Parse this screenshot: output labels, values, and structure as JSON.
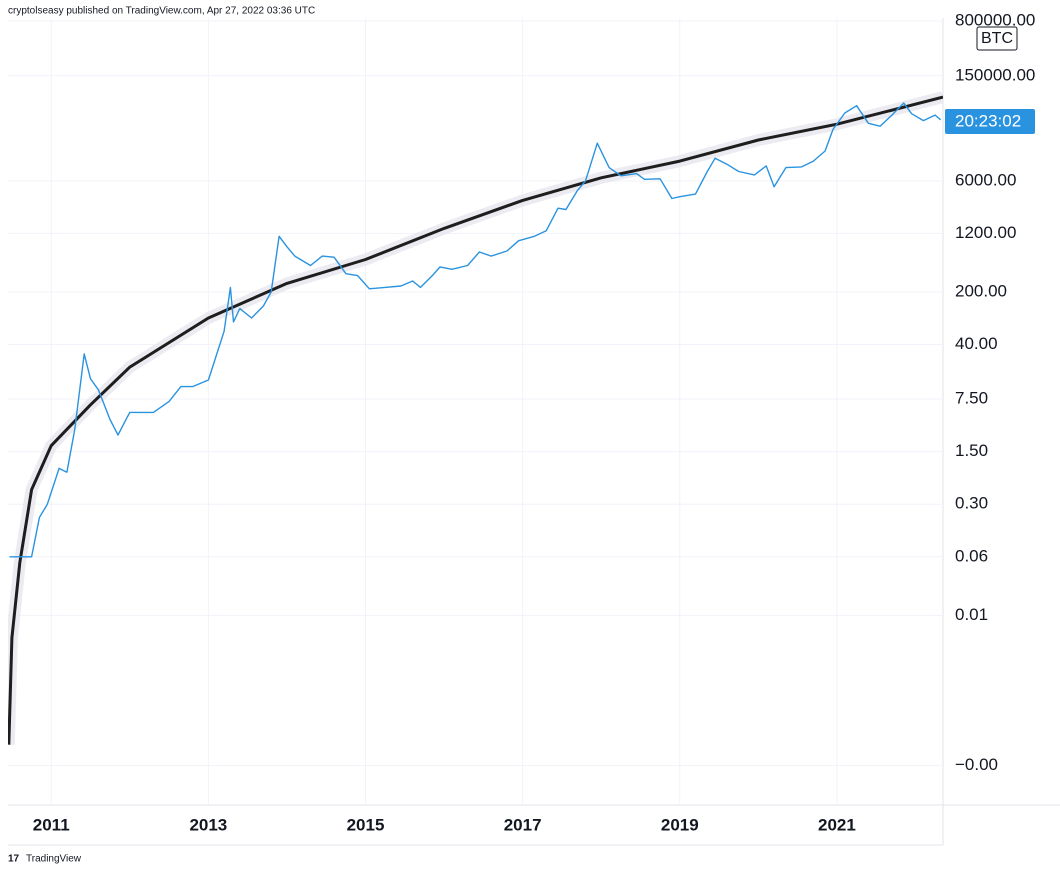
{
  "chart_data": {
    "type": "line",
    "header": "cryptolseasy published on TradingView.com, Apr 27, 2022 03:36 UTC",
    "symbol": "BTC",
    "countdown": "20:23:02",
    "footer": "TradingView",
    "log_scale": true,
    "grid": true,
    "xlim": [
      2010.45,
      2022.35
    ],
    "xticks": [
      2011,
      2013,
      2015,
      2017,
      2019,
      2021
    ],
    "ylim": [
      3e-05,
      880000
    ],
    "yticks": [
      {
        "value": 800000,
        "label": "800000.00"
      },
      {
        "value": 150000,
        "label": "150000.00"
      },
      {
        "value": 6000,
        "label": "6000.00"
      },
      {
        "value": 1200,
        "label": "1200.00"
      },
      {
        "value": 200,
        "label": "200.00"
      },
      {
        "value": 40,
        "label": "40.00"
      },
      {
        "value": 7.5,
        "label": "7.50"
      },
      {
        "value": 1.5,
        "label": "1.50"
      },
      {
        "value": 0.3,
        "label": "0.30"
      },
      0.06,
      0.01,
      {
        "value": 0.0001,
        "label": "−0.00"
      }
    ],
    "series": [
      {
        "color": "#2a93e0",
        "x": [
          2010.47,
          2010.55,
          2010.75,
          2010.85,
          2010.95,
          2011.1,
          2011.2,
          2011.3,
          2011.42,
          2011.5,
          2011.6,
          2011.75,
          2011.85,
          2011.95,
          2012.0,
          2012.1,
          2012.3,
          2012.5,
          2012.65,
          2012.8,
          2013.0,
          2013.2,
          2013.28,
          2013.32,
          2013.4,
          2013.55,
          2013.7,
          2013.8,
          2013.9,
          2014.0,
          2014.1,
          2014.3,
          2014.45,
          2014.6,
          2014.75,
          2014.9,
          2015.05,
          2015.25,
          2015.45,
          2015.6,
          2015.7,
          2015.85,
          2015.95,
          2016.1,
          2016.3,
          2016.45,
          2016.6,
          2016.8,
          2016.95,
          2017.15,
          2017.3,
          2017.45,
          2017.55,
          2017.7,
          2017.8,
          2017.95,
          2018.1,
          2018.25,
          2018.45,
          2018.55,
          2018.75,
          2018.9,
          2019.0,
          2019.2,
          2019.35,
          2019.45,
          2019.6,
          2019.75,
          2019.95,
          2020.1,
          2020.2,
          2020.35,
          2020.55,
          2020.7,
          2020.85,
          2020.95,
          2021.1,
          2021.25,
          2021.4,
          2021.55,
          2021.7,
          2021.85,
          2021.95,
          2022.1,
          2022.25,
          2022.32
        ],
        "values": [
          0.06,
          0.06,
          0.06,
          0.2,
          0.3,
          0.9,
          0.8,
          3,
          30,
          14,
          10,
          4,
          2.5,
          4,
          5,
          5,
          5,
          7,
          11,
          11,
          13.5,
          60,
          230,
          80,
          120,
          90,
          130,
          200,
          1100,
          800,
          600,
          450,
          600,
          580,
          350,
          330,
          220,
          230,
          240,
          280,
          230,
          330,
          430,
          400,
          450,
          680,
          600,
          700,
          960,
          1100,
          1300,
          2600,
          2500,
          4500,
          6000,
          19000,
          9000,
          7000,
          7500,
          6300,
          6400,
          3500,
          3700,
          4000,
          8000,
          12000,
          10000,
          8000,
          7200,
          9500,
          5000,
          9000,
          9200,
          11000,
          15000,
          29000,
          48000,
          60000,
          35000,
          32000,
          45000,
          65000,
          47000,
          38000,
          45000,
          39000
        ]
      },
      {
        "color": "#1e1e1e",
        "x": [
          2010.46,
          2010.5,
          2010.6,
          2010.75,
          2011.0,
          2011.5,
          2012.0,
          2013.0,
          2014.0,
          2015.0,
          2016.0,
          2017.0,
          2018.0,
          2019.0,
          2020.0,
          2021.0,
          2022.35
        ],
        "values": [
          0.00019,
          0.005,
          0.05,
          0.47,
          1.8,
          6.3,
          20,
          90,
          260,
          540,
          1400,
          3300,
          6600,
          11000,
          21000,
          34000,
          78000
        ]
      }
    ]
  }
}
